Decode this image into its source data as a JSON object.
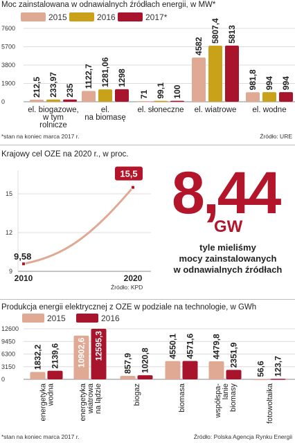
{
  "chart_data": [
    {
      "type": "bar",
      "title": "Moc zainstalowana w odnawialnych źródłach energii, w MW*",
      "categories": [
        [
          "el. biogazowe,",
          "w tym",
          "rolnicze"
        ],
        [
          "el.",
          "na biomasę"
        ],
        [
          "el. słoneczne"
        ],
        [
          "el. wiatrowe"
        ],
        [
          "el. wodne"
        ]
      ],
      "series": [
        {
          "name": "2015",
          "values": [
            212.5,
            1122.7,
            71,
            4582,
            981.8
          ],
          "labels": [
            "212,5",
            "1122,7",
            "71",
            "4582",
            "981,8"
          ]
        },
        {
          "name": "2016",
          "values": [
            233.97,
            1281.06,
            99.1,
            5807.4,
            994
          ],
          "labels": [
            "233,97",
            "1281,06",
            "99,1",
            "5807,4",
            "994"
          ]
        },
        {
          "name": "2017*",
          "values": [
            235,
            1298,
            100,
            5813,
            994
          ],
          "labels": [
            "235",
            "1298",
            "100",
            "5813",
            "994"
          ]
        }
      ],
      "yticks": [
        "0",
        "1900",
        "3800",
        "5700",
        "7600"
      ],
      "ylim": [
        0,
        7600
      ],
      "legend": "top",
      "colors": [
        "#e0a994",
        "#c9a21a",
        "#a8142b"
      ],
      "footnote": "*stan na koniec marca 2017 r.",
      "source": "Źródło: URE"
    },
    {
      "type": "line",
      "title": "Krajowy cel OZE na 2020 r., w proc.",
      "x": [
        2010,
        2020
      ],
      "y": [
        9.58,
        15.5
      ],
      "point_labels": [
        "9,58",
        "15,5"
      ],
      "xticks": [
        "2010",
        "2020"
      ],
      "yticks": [
        "9",
        "12",
        "15"
      ],
      "ylim": [
        9,
        16.5
      ],
      "color": "#e0a994",
      "source": "Źródło: KPD"
    },
    {
      "type": "bar",
      "title": "Produkcja energii elektrycznej z OZE w podziale na technologie, w GWh",
      "categories": [
        [
          "energetyka",
          "wodna"
        ],
        [
          "energetyka",
          "wiatrowa",
          "na lądzie"
        ],
        [
          "biogaz"
        ],
        [
          "biomasa"
        ],
        [
          "współspa-",
          "lanie",
          "biomasy"
        ],
        [
          "fotowoltaika"
        ]
      ],
      "series": [
        {
          "name": "2015",
          "values": [
            1832.2,
            10902.6,
            857.9,
            4550.1,
            4479.8,
            56.6
          ],
          "labels": [
            "1832,2",
            "10902,6",
            "857,9",
            "4550,1",
            "4479,8",
            "56,6"
          ]
        },
        {
          "name": "2016",
          "values": [
            2139.6,
            12595.3,
            1020.8,
            4571.6,
            2351.9,
            123.7
          ],
          "labels": [
            "2139,6",
            "12595,3",
            "1020,8",
            "4571,6",
            "2351,9",
            "123,7"
          ]
        }
      ],
      "yticks": [
        "0",
        "3150",
        "6300",
        "9450",
        "12600"
      ],
      "ylim": [
        0,
        12600
      ],
      "legend": "top",
      "colors": [
        "#e0a994",
        "#a8142b"
      ],
      "footnote": "*stan na koniec marca 2017 r.",
      "source": "Źródło: Polska Agencja Rynku Energii"
    }
  ],
  "highlight": {
    "number": "8,44",
    "unit": "GW",
    "caption": [
      "tyle mieliśmy",
      "mocy zainstalowanych",
      "w odnawialnych źródłach"
    ]
  }
}
